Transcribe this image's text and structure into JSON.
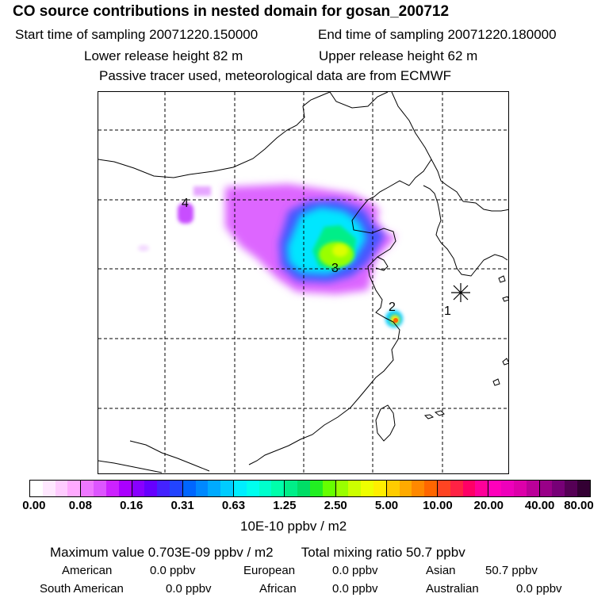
{
  "header": {
    "title": "CO  source contributions in nested domain for gosan_200712",
    "start_time": "Start time of sampling 20071220.150000",
    "end_time": "End time of sampling 20071220.180000",
    "lower_release": "Lower release height   82 m",
    "upper_release": "Upper release height   62 m",
    "passive_note": "Passive tracer used, meteorological data are from ECMWF"
  },
  "map": {
    "source_labels": [
      "1",
      "2",
      "3",
      "4"
    ]
  },
  "colorbar": {
    "tick_labels": [
      "0.00",
      "0.08",
      "0.16",
      "0.31",
      "0.63",
      "1.25",
      "2.50",
      "5.00",
      "10.00",
      "20.00",
      "40.00",
      "80.00"
    ],
    "unit_label": "10E-10 ppbv / m2",
    "colors": [
      "#ffffff",
      "#ffe8ff",
      "#ffccff",
      "#ffaaff",
      "#ee77ff",
      "#dd55ff",
      "#cc22ff",
      "#aa00ff",
      "#8800ff",
      "#6600ff",
      "#4422ff",
      "#2244ff",
      "#0066ff",
      "#0088ff",
      "#00aaff",
      "#00ccff",
      "#00eeff",
      "#00ffee",
      "#00ffcc",
      "#00ffaa",
      "#00ee88",
      "#00dd66",
      "#22ee22",
      "#66ff00",
      "#99ff00",
      "#ccff00",
      "#eeff00",
      "#ffee00",
      "#ffcc00",
      "#ffaa00",
      "#ff8800",
      "#ff6600",
      "#ff4422",
      "#ff2244",
      "#ff0066",
      "#ff0099",
      "#ff00bb",
      "#ee00bb",
      "#dd00aa",
      "#bb0099",
      "#990088",
      "#770077",
      "#550055",
      "#330033"
    ]
  },
  "summary": {
    "maximum": "Maximum value  0.703E-09 ppbv / m2",
    "total": "Total mixing ratio       50.7 ppbv"
  },
  "regions": [
    {
      "name": "American",
      "value": "0.0 ppbv"
    },
    {
      "name": "European",
      "value": "0.0 ppbv"
    },
    {
      "name": "Asian",
      "value": "50.7 ppbv"
    },
    {
      "name": "South American",
      "value": "0.0 ppbv"
    },
    {
      "name": "African",
      "value": "0.0 ppbv"
    },
    {
      "name": "Australian",
      "value": "0.0 ppbv"
    }
  ]
}
